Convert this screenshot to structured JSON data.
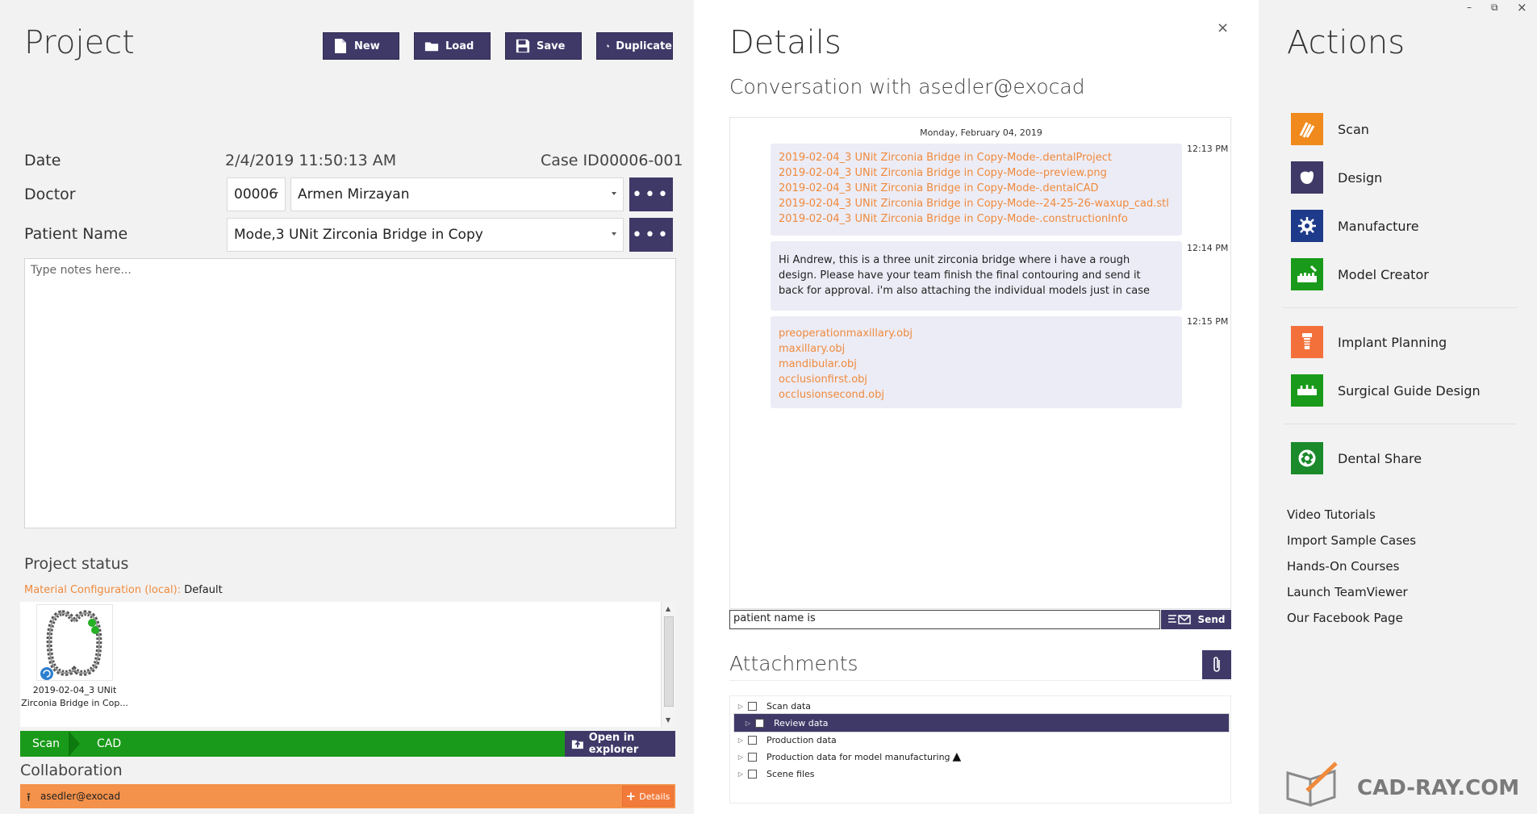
{
  "project": {
    "title": "Project",
    "toolbar": {
      "new_label": "New",
      "load_label": "Load",
      "save_label": "Save",
      "duplicate_label": "Duplicate"
    },
    "date_label": "Date",
    "date_value": "2/4/2019  11:50:13 AM",
    "case_id_label": "Case ID",
    "case_id_value": "00006-001",
    "doctor_label": "Doctor",
    "doctor_code": "00006",
    "doctor_name": "Armen Mirzayan",
    "patient_label": "Patient Name",
    "patient_value": "Mode,3 UNit Zirconia Bridge in Copy",
    "notes_placeholder": "Type notes here...",
    "more_label": "•••",
    "status_title": "Project status",
    "material_key": "Material Configuration (local):",
    "material_value": "Default",
    "thumb_caption": "2019-02-04_3 UNit Zirconia Bridge in Cop...",
    "status_steps": [
      "Scan",
      "CAD"
    ],
    "open_explorer_label": "Open in explorer",
    "collab_title": "Collaboration",
    "collab_user": "asedler@exocad",
    "details_label": "Details"
  },
  "details": {
    "title": "Details",
    "subtitle": "Conversation with asedler@exocad",
    "close_label": "×",
    "date_header": "Monday, February 04, 2019",
    "messages": [
      {
        "time": "12:13 PM",
        "links": [
          "2019-02-04_3 UNit Zirconia Bridge in Copy-Mode-.dentalProject",
          "2019-02-04_3 UNit Zirconia Bridge in Copy-Mode--preview.png",
          "2019-02-04_3 UNit Zirconia Bridge in Copy-Mode-.dentalCAD",
          "2019-02-04_3 UNit Zirconia Bridge in Copy-Mode--24-25-26-waxup_cad.stl",
          "2019-02-04_3 UNit Zirconia Bridge in Copy-Mode-.constructionInfo"
        ]
      },
      {
        "time": "12:14 PM",
        "lines": [
          "Hi Andrew, this is a three unit zirconia bridge where i have a rough",
          "design.  Please have your team finish the final contouring and send it",
          "back for approval.  i'm also attaching the individual models just in case"
        ]
      },
      {
        "time": "12:15 PM",
        "links": [
          "preoperationmaxillary.obj",
          "maxillary.obj",
          "mandibular.obj",
          "occlusionfirst.obj",
          "occlusionsecond.obj"
        ]
      }
    ],
    "input_value": "patient name is",
    "send_label": "Send",
    "attachments_title": "Attachments",
    "attachments": [
      {
        "label": "Scan data",
        "selected": false
      },
      {
        "label": "Review data",
        "selected": true
      },
      {
        "label": "Production data",
        "selected": false
      },
      {
        "label": "Production data for model manufacturing",
        "selected": false,
        "warning": true
      },
      {
        "label": "Scene files",
        "selected": false
      }
    ]
  },
  "actions": {
    "title": "Actions",
    "items": [
      {
        "label": "Scan",
        "icon": "scan-icon",
        "color": "#f08a1c"
      },
      {
        "label": "Design",
        "icon": "design-icon",
        "color": "#3f3968"
      },
      {
        "label": "Manufacture",
        "icon": "manufacture-icon",
        "color": "#1e3a8a"
      },
      {
        "label": "Model Creator",
        "icon": "model-creator-icon",
        "color": "#1a9a1a"
      },
      {
        "label": "Implant Planning",
        "icon": "implant-planning-icon",
        "color": "#f4703a"
      },
      {
        "label": "Surgical Guide Design",
        "icon": "surgical-guide-icon",
        "color": "#1a9a1a"
      },
      {
        "label": "Dental Share",
        "icon": "dental-share-icon",
        "color": "#1a8a2a"
      }
    ],
    "links": [
      "Video Tutorials",
      "Import Sample Cases",
      "Hands-On Courses",
      "Launch TeamViewer",
      "Our Facebook Page"
    ],
    "brand": "CAD-RAY.COM"
  },
  "window": {
    "minimize": "–",
    "restore": "⧉",
    "close": "×"
  },
  "colors": {
    "accent": "#3f3968",
    "green": "#1a9a1a",
    "orange": "#f08a3c",
    "collab": "#f4914a"
  }
}
